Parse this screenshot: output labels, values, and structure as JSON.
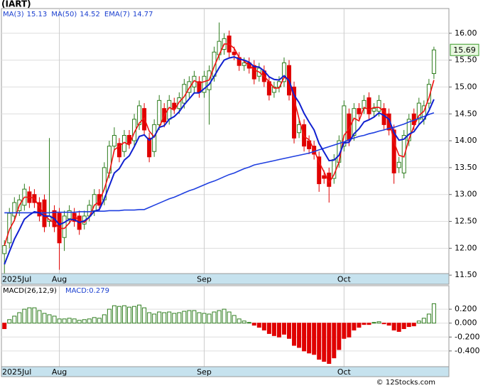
{
  "chart_data": [
    {
      "type": "candlestick",
      "title": "(IART)",
      "xticks": [
        {
          "value": 0,
          "label": "2025Jul"
        },
        {
          "value": 11,
          "label": "Aug"
        },
        {
          "value": 40,
          "label": "Sep"
        },
        {
          "value": 68,
          "label": "Oct"
        }
      ],
      "open": [
        11.9,
        12.1,
        12.6,
        12.7,
        12.8,
        13.05,
        13.0,
        12.85,
        12.9,
        12.5,
        12.7,
        12.65,
        12.2,
        12.55,
        12.65,
        12.6,
        12.45,
        12.6,
        12.7,
        13.0,
        12.9,
        13.4,
        13.9,
        13.95,
        13.8,
        14.1,
        14.0,
        14.3,
        14.6,
        14.05,
        13.8,
        14.3,
        14.6,
        14.4,
        14.7,
        14.6,
        14.7,
        14.9,
        15.0,
        15.1,
        14.9,
        14.95,
        15.2,
        15.6,
        15.7,
        15.95,
        15.65,
        15.55,
        15.4,
        15.45,
        15.4,
        15.2,
        15.3,
        15.1,
        14.9,
        15.0,
        15.1,
        15.4,
        15.0,
        14.15,
        14.3,
        14.0,
        13.9,
        13.7,
        13.35,
        13.4,
        13.3,
        13.6,
        13.9,
        14.5,
        14.1,
        14.6,
        14.6,
        14.8,
        14.55,
        14.55,
        14.6,
        14.5,
        14.2,
        13.5,
        13.4,
        14.0,
        14.5,
        14.4,
        14.4,
        14.7,
        15.25
      ],
      "high": [
        12.15,
        12.75,
        12.95,
        13.0,
        13.2,
        13.15,
        13.1,
        12.95,
        13.0,
        14.05,
        12.8,
        12.75,
        12.7,
        12.8,
        12.75,
        12.7,
        12.7,
        12.9,
        13.1,
        13.1,
        13.6,
        14.0,
        14.25,
        14.05,
        14.2,
        14.2,
        14.5,
        14.75,
        14.7,
        14.15,
        14.4,
        14.85,
        14.7,
        14.85,
        14.8,
        14.9,
        15.15,
        15.2,
        15.3,
        15.2,
        15.3,
        15.4,
        15.75,
        16.2,
        16.0,
        16.05,
        15.75,
        15.65,
        15.55,
        15.55,
        15.5,
        15.45,
        15.4,
        15.2,
        15.1,
        15.2,
        15.55,
        15.5,
        15.1,
        14.4,
        14.4,
        14.1,
        14.0,
        13.8,
        13.45,
        13.5,
        13.75,
        14.1,
        14.75,
        14.6,
        14.7,
        14.7,
        14.85,
        14.9,
        14.7,
        14.85,
        14.7,
        14.6,
        14.3,
        13.7,
        14.2,
        14.5,
        14.6,
        14.8,
        14.75,
        15.15,
        15.75
      ],
      "low": [
        11.5,
        12.0,
        12.5,
        12.6,
        12.7,
        12.75,
        12.75,
        12.5,
        12.3,
        12.4,
        12.3,
        11.6,
        11.95,
        12.45,
        12.4,
        12.25,
        12.35,
        12.5,
        12.6,
        12.7,
        12.8,
        13.3,
        13.8,
        13.6,
        13.7,
        13.85,
        13.9,
        14.2,
        14.1,
        13.6,
        13.7,
        14.2,
        14.25,
        14.3,
        14.5,
        14.5,
        14.6,
        14.8,
        14.9,
        14.8,
        14.8,
        14.3,
        15.1,
        15.5,
        15.6,
        15.55,
        15.5,
        15.3,
        15.3,
        15.25,
        15.05,
        15.1,
        15.0,
        14.75,
        14.8,
        14.9,
        15.0,
        14.75,
        13.95,
        14.05,
        13.8,
        13.75,
        13.65,
        13.05,
        13.2,
        12.85,
        13.2,
        13.5,
        13.8,
        13.9,
        14.0,
        14.4,
        14.5,
        14.4,
        14.45,
        14.45,
        14.2,
        14.1,
        13.2,
        13.4,
        13.3,
        13.9,
        14.2,
        14.3,
        14.3,
        14.6,
        15.15
      ],
      "close": [
        12.05,
        12.65,
        12.85,
        12.9,
        13.1,
        12.85,
        12.85,
        12.6,
        12.4,
        12.6,
        12.4,
        12.1,
        12.6,
        12.7,
        12.5,
        12.35,
        12.6,
        12.8,
        13.0,
        12.8,
        13.5,
        13.9,
        14.1,
        13.7,
        14.1,
        13.95,
        14.4,
        14.65,
        14.2,
        13.7,
        14.3,
        14.75,
        14.35,
        14.75,
        14.6,
        14.8,
        15.05,
        15.1,
        15.2,
        14.9,
        15.2,
        15.3,
        15.65,
        15.85,
        15.9,
        15.65,
        15.6,
        15.4,
        15.45,
        15.35,
        15.15,
        15.35,
        15.1,
        14.85,
        15.0,
        15.1,
        15.45,
        14.85,
        14.05,
        14.3,
        13.9,
        13.85,
        13.75,
        13.2,
        13.3,
        13.15,
        13.65,
        14.0,
        14.65,
        14.0,
        14.6,
        14.5,
        14.75,
        14.5,
        14.6,
        14.75,
        14.3,
        14.2,
        13.4,
        13.6,
        14.1,
        14.4,
        14.3,
        14.7,
        14.65,
        15.05,
        15.69
      ],
      "up_color": "#2e7d1e",
      "down_color": "#e00000",
      "series": [
        {
          "name": "MA(3)",
          "legend_value": 15.13,
          "color": "#ee1111",
          "values": [
            12.05,
            12.35,
            12.52,
            12.8,
            12.95,
            12.95,
            12.93,
            12.77,
            12.62,
            12.53,
            12.47,
            12.37,
            12.37,
            12.47,
            12.6,
            12.52,
            12.48,
            12.58,
            12.8,
            12.87,
            13.1,
            13.4,
            13.83,
            13.9,
            13.97,
            13.92,
            14.15,
            14.33,
            14.42,
            14.18,
            14.07,
            14.25,
            14.47,
            14.62,
            14.57,
            14.72,
            14.82,
            14.98,
            15.12,
            15.07,
            15.1,
            15.13,
            15.38,
            15.6,
            15.8,
            15.8,
            15.72,
            15.55,
            15.48,
            15.4,
            15.32,
            15.28,
            15.2,
            15.1,
            14.98,
            14.98,
            15.18,
            15.13,
            14.78,
            14.4,
            14.08,
            14.02,
            13.83,
            13.6,
            13.42,
            13.22,
            13.37,
            13.6,
            14.1,
            14.22,
            14.42,
            14.37,
            14.62,
            14.58,
            14.62,
            14.62,
            14.55,
            14.42,
            13.97,
            13.73,
            13.7,
            14.03,
            14.27,
            14.47,
            14.55,
            14.8,
            15.13
          ]
        },
        {
          "name": "MA(50)",
          "legend_value": 14.52,
          "color": "#1f3fe0",
          "values": [
            12.66,
            12.66,
            12.66,
            12.66,
            12.66,
            12.66,
            12.66,
            12.66,
            12.66,
            12.66,
            12.67,
            12.67,
            12.67,
            12.67,
            12.67,
            12.68,
            12.68,
            12.68,
            12.69,
            12.69,
            12.69,
            12.7,
            12.7,
            12.7,
            12.71,
            12.71,
            12.71,
            12.72,
            12.72,
            12.76,
            12.8,
            12.84,
            12.88,
            12.92,
            12.95,
            12.99,
            13.03,
            13.07,
            13.1,
            13.14,
            13.18,
            13.22,
            13.25,
            13.29,
            13.33,
            13.37,
            13.4,
            13.44,
            13.48,
            13.51,
            13.55,
            13.57,
            13.59,
            13.61,
            13.63,
            13.65,
            13.67,
            13.69,
            13.71,
            13.73,
            13.75,
            13.77,
            13.8,
            13.83,
            13.86,
            13.89,
            13.92,
            13.95,
            13.98,
            14.02,
            14.05,
            14.08,
            14.1,
            14.13,
            14.15,
            14.18,
            14.2,
            14.23,
            14.25,
            14.28,
            14.31,
            14.35,
            14.38,
            14.42,
            14.45,
            14.49,
            14.52
          ]
        },
        {
          "name": "EMA(7)",
          "legend_value": 14.77,
          "color": "#1020d0",
          "values": [
            11.7,
            11.94,
            12.17,
            12.35,
            12.54,
            12.62,
            12.68,
            12.66,
            12.6,
            12.6,
            12.55,
            12.44,
            12.48,
            12.54,
            12.53,
            12.48,
            12.51,
            12.58,
            12.69,
            12.72,
            12.92,
            13.16,
            13.4,
            13.48,
            13.64,
            13.72,
            13.89,
            14.08,
            14.11,
            14.01,
            14.08,
            14.25,
            14.28,
            14.4,
            14.45,
            14.54,
            14.67,
            14.78,
            14.89,
            14.89,
            14.97,
            15.05,
            15.2,
            15.36,
            15.5,
            15.54,
            15.56,
            15.52,
            15.5,
            15.46,
            15.38,
            15.37,
            15.3,
            15.19,
            15.14,
            15.13,
            15.21,
            15.12,
            14.85,
            14.71,
            14.51,
            14.35,
            14.2,
            13.95,
            13.79,
            13.63,
            13.64,
            13.73,
            13.96,
            13.97,
            14.13,
            14.22,
            14.35,
            14.39,
            14.44,
            14.52,
            14.47,
            14.4,
            14.15,
            14.01,
            14.03,
            14.12,
            14.17,
            14.3,
            14.39,
            14.56,
            14.77
          ]
        }
      ],
      "last_price": 15.69,
      "ylim": [
        11.37,
        16.46
      ],
      "yticks": [
        {
          "value": 11.5,
          "label": "11.50"
        },
        {
          "value": 12,
          "label": "12.00"
        },
        {
          "value": 12.5,
          "label": "12.50"
        },
        {
          "value": 13,
          "label": "13.00"
        },
        {
          "value": 13.5,
          "label": "13.50"
        },
        {
          "value": 14,
          "label": "14.00"
        },
        {
          "value": 14.5,
          "label": "14.50"
        },
        {
          "value": 15,
          "label": "15.00"
        },
        {
          "value": 15.5,
          "label": "15.50"
        },
        {
          "value": 16,
          "label": "16.00"
        }
      ],
      "grid": true
    },
    {
      "type": "bar",
      "title": "MACD(26,12,9)",
      "value_label": "MACD:0.279",
      "xticks": [
        {
          "value": 0,
          "label": "2025Jul"
        },
        {
          "value": 11,
          "label": "Aug"
        },
        {
          "value": 40,
          "label": "Sep"
        },
        {
          "value": 68,
          "label": "Oct"
        }
      ],
      "values": [
        -0.08,
        0.05,
        0.1,
        0.15,
        0.2,
        0.22,
        0.22,
        0.18,
        0.14,
        0.12,
        0.1,
        0.06,
        0.06,
        0.07,
        0.06,
        0.04,
        0.05,
        0.06,
        0.08,
        0.07,
        0.12,
        0.2,
        0.25,
        0.24,
        0.25,
        0.23,
        0.24,
        0.26,
        0.22,
        0.15,
        0.13,
        0.16,
        0.15,
        0.16,
        0.14,
        0.15,
        0.17,
        0.18,
        0.18,
        0.15,
        0.14,
        0.13,
        0.16,
        0.18,
        0.2,
        0.16,
        0.11,
        0.06,
        0.03,
        0.01,
        -0.03,
        -0.06,
        -0.1,
        -0.15,
        -0.18,
        -0.2,
        -0.16,
        -0.22,
        -0.32,
        -0.35,
        -0.4,
        -0.43,
        -0.45,
        -0.52,
        -0.55,
        -0.58,
        -0.5,
        -0.38,
        -0.22,
        -0.2,
        -0.1,
        -0.06,
        -0.02,
        -0.02,
        0.01,
        0.02,
        -0.01,
        -0.03,
        -0.1,
        -0.12,
        -0.08,
        -0.05,
        -0.04,
        0.03,
        0.07,
        0.13,
        0.279
      ],
      "up_color": "#2e7d1e",
      "down_color": "#e00000",
      "ylim": [
        -0.626,
        0.538
      ],
      "yticks": [
        {
          "value": 0.2,
          "label": "0.200"
        },
        {
          "value": 0,
          "label": "0.000"
        },
        {
          "value": -0.2,
          "label": "-0.200"
        },
        {
          "value": -0.4,
          "label": "-0.400"
        }
      ],
      "grid": true
    }
  ],
  "footer": "© 12Stocks.com"
}
